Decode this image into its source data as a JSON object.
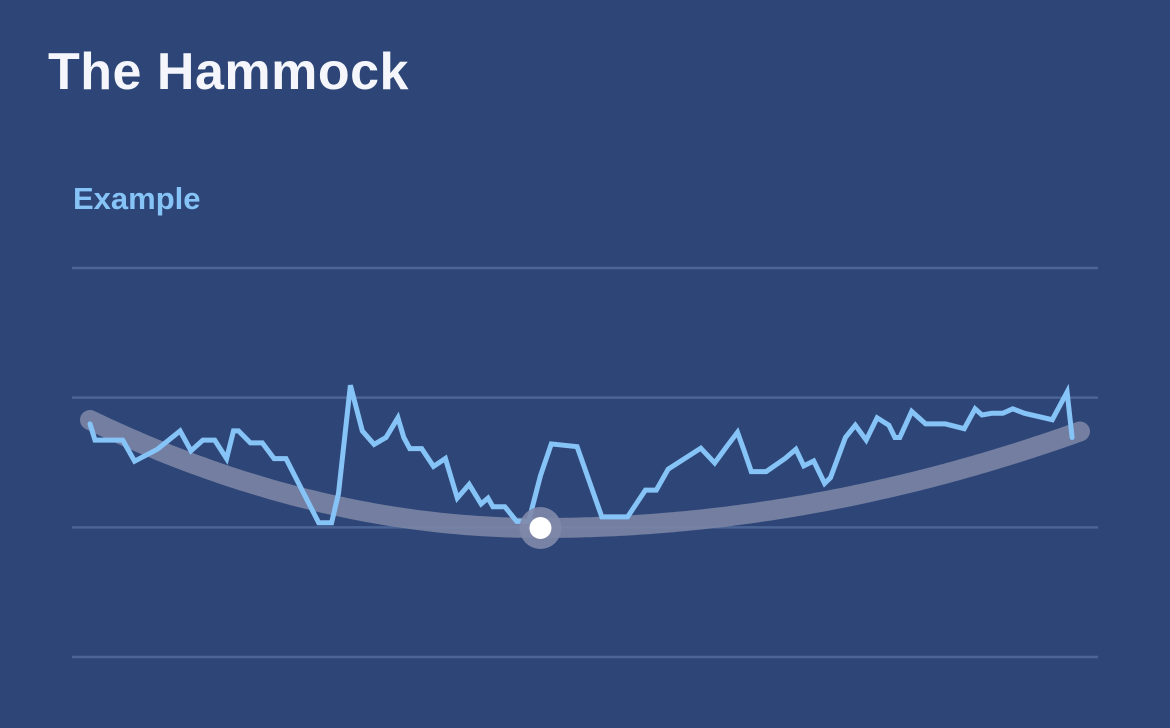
{
  "header": {
    "title": "The Hammock",
    "subtitle": "Example"
  },
  "colors": {
    "background": "#2e4677",
    "gridline": "#4a6596",
    "price_line": "#86c4f7",
    "hammock_curve": "#7f88a8",
    "low_point": "#ffffff"
  },
  "chart_data": {
    "type": "line",
    "title": "",
    "xlabel": "",
    "ylabel": "",
    "grid": true,
    "gridlines": 4,
    "legend": "none",
    "xlim": [
      0,
      100
    ],
    "ylim": [
      0,
      100
    ],
    "series": [
      {
        "role": "price",
        "x": [
          0,
          0.5,
          1.6,
          3.3,
          4.5,
          6.8,
          9.1,
          10.2,
          11.4,
          12.6,
          13.8,
          14.5,
          15,
          16.2,
          17.4,
          18.6,
          19.8,
          23.1,
          24.4,
          25.1,
          26.3,
          27.5,
          28.7,
          29.9,
          31.1,
          31.7,
          32.3,
          33.5,
          34.7,
          35.9,
          37.1,
          38.3,
          39.5,
          40.2,
          40.7,
          41.9,
          43.1,
          44.3,
          45.5,
          46.6,
          49.2,
          51.7,
          52.4,
          53.6,
          54.3,
          56.1,
          57.2,
          58.4,
          61.7,
          63.1,
          64.3,
          65.4,
          66.1,
          66.8,
          68.3,
          70.2,
          71.3,
          72.1,
          73.1,
          74.2,
          74.8,
          76.3,
          77.3,
          78.4,
          79.5,
          80.7,
          81.3,
          81.8,
          83,
          84.4,
          85,
          86.4,
          88.3,
          89.4,
          90.1,
          91.1,
          92.2,
          93.2,
          94.4,
          97.2,
          98.7,
          99.2
        ],
        "y": [
          60.2,
          50.8,
          50.8,
          50.8,
          38.6,
          45.5,
          56.1,
          44.6,
          50.8,
          50.8,
          40.1,
          56.1,
          56.1,
          49.2,
          49.2,
          40.1,
          40.1,
          3,
          3,
          20,
          82.5,
          56.1,
          48.3,
          52.3,
          63.7,
          52.3,
          45.9,
          45.9,
          35.6,
          40.2,
          17.3,
          25.2,
          13.9,
          17.3,
          12.3,
          12.3,
          3.8,
          3.8,
          30.3,
          48.6,
          47,
          6.4,
          6.4,
          6.4,
          6.4,
          21.9,
          21.9,
          34,
          46.1,
          37.6,
          47,
          55.3,
          44.2,
          32.6,
          32.6,
          40.2,
          45.5,
          35.9,
          38.7,
          25.8,
          29.1,
          52.3,
          59.4,
          50.8,
          63.7,
          59.4,
          52.3,
          52.3,
          67.4,
          60.2,
          60.2,
          60.2,
          57.4,
          68.9,
          65.3,
          66.3,
          66.3,
          68.9,
          66.3,
          62.6,
          78.6,
          52.3
        ]
      },
      {
        "role": "hammock",
        "x": [
          0,
          100
        ],
        "y": [
          62.4,
          55.8
        ],
        "vertex_x": 45.5,
        "vertex_y": 0
      }
    ],
    "annotations": [
      {
        "kind": "point",
        "label": "",
        "x": 45.5,
        "y": 0
      }
    ]
  }
}
